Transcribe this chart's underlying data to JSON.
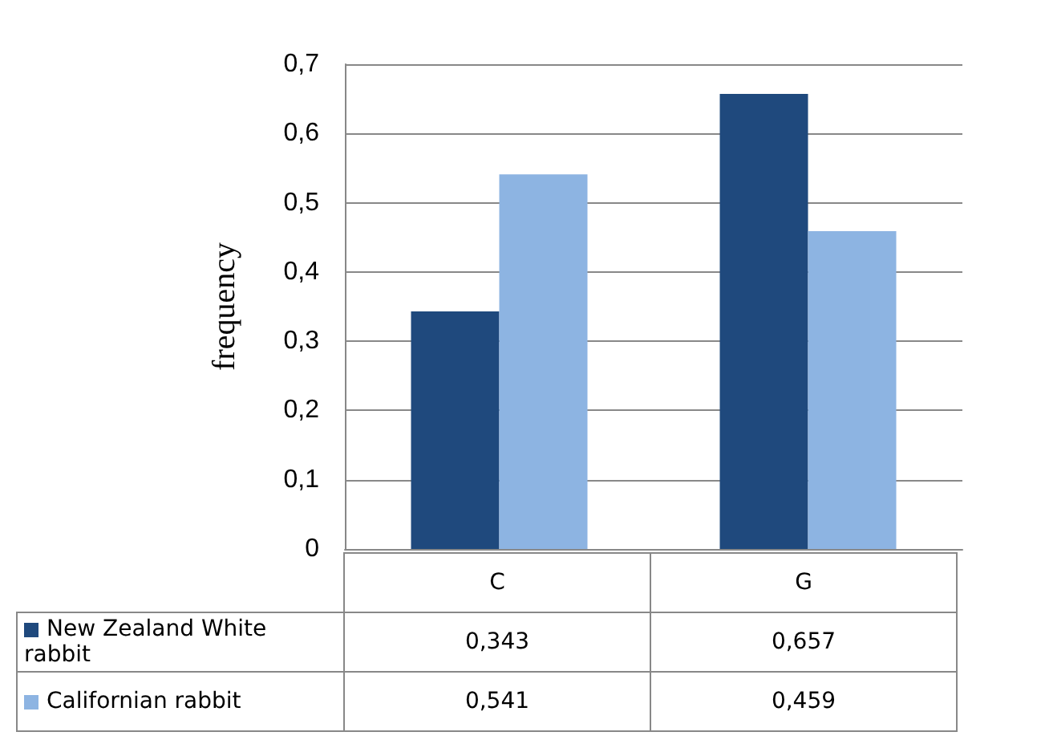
{
  "chart_data": {
    "type": "bar",
    "ylabel": "frequency",
    "categories": [
      "C",
      "G"
    ],
    "series": [
      {
        "name": "New Zealand White rabbit",
        "color": "#1f497d",
        "values": [
          0.343,
          0.657
        ],
        "value_labels": [
          "0,343",
          "0,657"
        ]
      },
      {
        "name": "Californian rabbit",
        "color": "#8db4e2",
        "values": [
          0.541,
          0.459
        ],
        "value_labels": [
          "0,541",
          "0,459"
        ]
      }
    ],
    "ylim": [
      0,
      0.7
    ],
    "yticks": [
      0,
      {
        "value": 0.1,
        "label": "0,1"
      },
      {
        "value": 0.2,
        "label": "0,2"
      },
      {
        "value": 0.3,
        "label": "0,3"
      },
      {
        "value": 0.4,
        "label": "0,4"
      },
      {
        "value": 0.5,
        "label": "0,5"
      },
      {
        "value": 0.6,
        "label": "0,6"
      },
      {
        "value": 0.7,
        "label": "0,7"
      }
    ],
    "grid": "y",
    "legend": "bottom"
  }
}
